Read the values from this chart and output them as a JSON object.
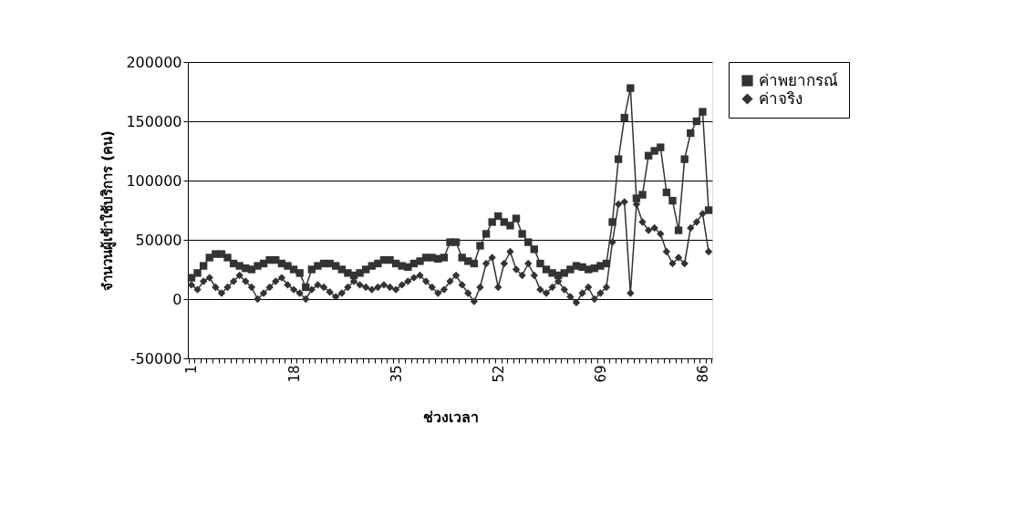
{
  "chart_data": {
    "type": "line",
    "xlabel": "ช่วงเวลา",
    "ylabel": "จำนวนผู้เข้าใช้บริการ (คน)",
    "categories": [
      "1",
      null,
      null,
      null,
      null,
      null,
      null,
      null,
      null,
      null,
      null,
      null,
      null,
      null,
      null,
      null,
      null,
      "18",
      null,
      null,
      null,
      null,
      null,
      null,
      null,
      null,
      null,
      null,
      null,
      null,
      null,
      null,
      null,
      null,
      "35",
      null,
      null,
      null,
      null,
      null,
      null,
      null,
      null,
      null,
      null,
      null,
      null,
      null,
      null,
      null,
      null,
      "52",
      null,
      null,
      null,
      null,
      null,
      null,
      null,
      null,
      null,
      null,
      null,
      null,
      null,
      null,
      null,
      null,
      "69",
      null,
      null,
      null,
      null,
      null,
      null,
      null,
      null,
      null,
      null,
      null,
      null,
      null,
      null,
      null,
      null,
      "86",
      null
    ],
    "series": [
      {
        "name": "ค่าพยากรณ์",
        "color": "#333333",
        "marker": "square",
        "values": [
          18000,
          22000,
          28000,
          35000,
          38000,
          38000,
          35000,
          30000,
          28000,
          26000,
          25000,
          28000,
          30000,
          33000,
          33000,
          30000,
          28000,
          25000,
          22000,
          10000,
          25000,
          28000,
          30000,
          30000,
          28000,
          25000,
          22000,
          20000,
          22000,
          25000,
          28000,
          30000,
          33000,
          33000,
          30000,
          28000,
          27000,
          30000,
          32000,
          35000,
          35000,
          34000,
          35000,
          48000,
          48000,
          35000,
          32000,
          30000,
          45000,
          55000,
          65000,
          70000,
          65000,
          62000,
          68000,
          55000,
          48000,
          42000,
          30000,
          25000,
          22000,
          20000,
          22000,
          25000,
          28000,
          27000,
          25000,
          26000,
          28000,
          30000,
          65000,
          118000,
          153000,
          178000,
          85000,
          88000,
          121000,
          125000,
          128000,
          90000,
          83000,
          58000,
          118000,
          140000,
          150000,
          158000,
          75000
        ]
      },
      {
        "name": "ค่าจริง",
        "color": "#333333",
        "marker": "diamond",
        "values": [
          12000,
          8000,
          15000,
          18000,
          10000,
          5000,
          10000,
          15000,
          20000,
          15000,
          10000,
          0,
          5000,
          10000,
          15000,
          18000,
          12000,
          8000,
          5000,
          0,
          8000,
          12000,
          10000,
          6000,
          2000,
          5000,
          10000,
          15000,
          12000,
          10000,
          8000,
          10000,
          12000,
          10000,
          8000,
          12000,
          15000,
          18000,
          20000,
          15000,
          10000,
          5000,
          8000,
          15000,
          20000,
          12000,
          5000,
          -2000,
          10000,
          30000,
          35000,
          10000,
          30000,
          40000,
          25000,
          20000,
          30000,
          20000,
          8000,
          5000,
          10000,
          15000,
          8000,
          2000,
          -3000,
          5000,
          10000,
          0,
          5000,
          10000,
          48000,
          80000,
          82000,
          5000,
          80000,
          65000,
          58000,
          60000,
          55000,
          40000,
          30000,
          35000,
          30000,
          60000,
          65000,
          72000,
          40000
        ]
      }
    ],
    "ylim": [
      -50000,
      200000
    ],
    "yticks": [
      -50000,
      0,
      50000,
      100000,
      150000,
      200000
    ],
    "grid": "y",
    "legend": "right"
  }
}
